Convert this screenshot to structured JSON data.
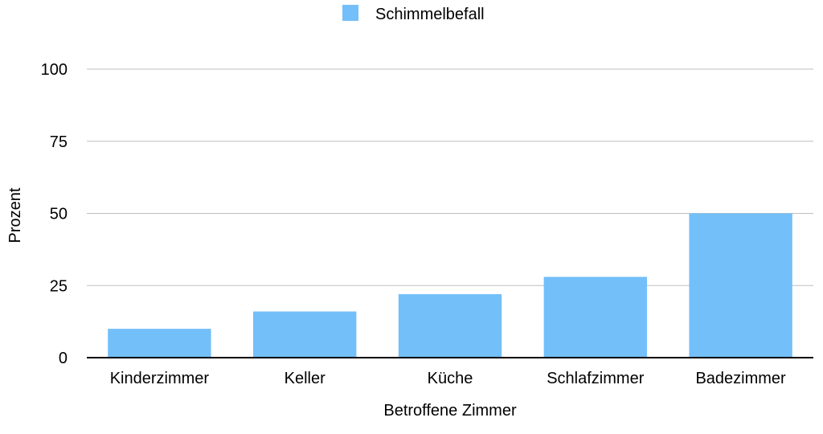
{
  "chart_data": {
    "type": "bar",
    "categories": [
      "Kinderzimmer",
      "Keller",
      "Küche",
      "Schlafzimmer",
      "Badezimmer"
    ],
    "series": [
      {
        "name": "Schimmelbefall",
        "values": [
          10,
          16,
          22,
          28,
          50
        ]
      }
    ],
    "title": "",
    "xlabel": "Betroffene Zimmer",
    "ylabel": "Prozent",
    "ylim": [
      0,
      100
    ],
    "yticks": [
      "0",
      "25",
      "50",
      "75",
      "100"
    ],
    "grid": true,
    "legend_position": "top-center",
    "colors": {
      "bar": "#73BFFA",
      "grid": "#BFBFBF",
      "axis": "#000000"
    }
  }
}
